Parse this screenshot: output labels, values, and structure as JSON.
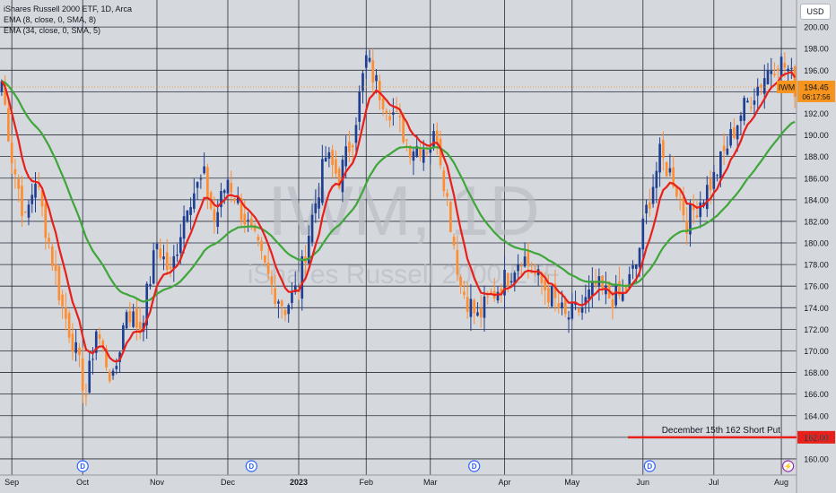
{
  "legend": {
    "title": "iShares Russell 2000 ETF, 1D, Arca",
    "ema_fast": "EMA (8, close, 0, SMA, 8)",
    "ema_slow": "EMA (34, close, 0, SMA, 5)"
  },
  "currency_button": "USD",
  "watermark": {
    "symbol": "IWM, 1D",
    "name": "iShares Russell 2000 ETF"
  },
  "colors": {
    "background": "#d5d8dd",
    "grid": "#2a2e39",
    "up_candle": "#1e3f91",
    "down_candle": "#ff8c2e",
    "ema_fast": "#e8201a",
    "ema_slow": "#3fa63a",
    "price_tag": "#f7941d",
    "short_put_line": "#e8201a"
  },
  "chart_data": {
    "type": "candlestick",
    "symbol": "IWM",
    "timeframe": "1D",
    "ylim": [
      158.5,
      202.5
    ],
    "y_ticks": [
      "160.00",
      "162.00",
      "164.00",
      "166.00",
      "168.00",
      "170.00",
      "172.00",
      "174.00",
      "176.00",
      "178.00",
      "180.00",
      "182.00",
      "184.00",
      "186.00",
      "188.00",
      "190.00",
      "192.00",
      "194.00",
      "196.00",
      "198.00",
      "200.00"
    ],
    "x_labels": [
      {
        "label": "Sep",
        "bar": 3
      },
      {
        "label": "Oct",
        "bar": 24
      },
      {
        "label": "Nov",
        "bar": 46
      },
      {
        "label": "Dec",
        "bar": 67
      },
      {
        "label": "2023",
        "bar": 88
      },
      {
        "label": "Feb",
        "bar": 108
      },
      {
        "label": "Mar",
        "bar": 127
      },
      {
        "label": "Apr",
        "bar": 149
      },
      {
        "label": "May",
        "bar": 169
      },
      {
        "label": "Jun",
        "bar": 190
      },
      {
        "label": "Jul",
        "bar": 211
      },
      {
        "label": "Aug",
        "bar": 231
      }
    ],
    "bar_count": 236,
    "anchors": [
      [
        0,
        195
      ],
      [
        3,
        188
      ],
      [
        7,
        182
      ],
      [
        10,
        186
      ],
      [
        14,
        180
      ],
      [
        18,
        174
      ],
      [
        21,
        171
      ],
      [
        25,
        166
      ],
      [
        28,
        172
      ],
      [
        33,
        167
      ],
      [
        37,
        174
      ],
      [
        41,
        172
      ],
      [
        46,
        180
      ],
      [
        50,
        177
      ],
      [
        55,
        184
      ],
      [
        60,
        186
      ],
      [
        63,
        182
      ],
      [
        67,
        186
      ],
      [
        71,
        183
      ],
      [
        75,
        180
      ],
      [
        80,
        176
      ],
      [
        84,
        174
      ],
      [
        88,
        176
      ],
      [
        91,
        181
      ],
      [
        96,
        188
      ],
      [
        100,
        186
      ],
      [
        104,
        190
      ],
      [
        108,
        197
      ],
      [
        112,
        194
      ],
      [
        116,
        192
      ],
      [
        121,
        189
      ],
      [
        126,
        189
      ],
      [
        129,
        190
      ],
      [
        133,
        182
      ],
      [
        136,
        176
      ],
      [
        141,
        173
      ],
      [
        145,
        175
      ],
      [
        150,
        177
      ],
      [
        154,
        179
      ],
      [
        158,
        177
      ],
      [
        163,
        175
      ],
      [
        167,
        173
      ],
      [
        172,
        174
      ],
      [
        176,
        176
      ],
      [
        180,
        175
      ],
      [
        184,
        175
      ],
      [
        188,
        178
      ],
      [
        191,
        183
      ],
      [
        195,
        188
      ],
      [
        199,
        186
      ],
      [
        203,
        182
      ],
      [
        207,
        184
      ],
      [
        211,
        186
      ],
      [
        215,
        189
      ],
      [
        219,
        192
      ],
      [
        223,
        194
      ],
      [
        227,
        196
      ],
      [
        230,
        197
      ],
      [
        233,
        196
      ],
      [
        235,
        194.5
      ]
    ],
    "ema_fast_period": 8,
    "ema_slow_period": 34,
    "last_price": {
      "symbol": "IWM",
      "value": "194.45",
      "countdown": "06:17:56"
    },
    "horizontal_lines": [
      {
        "label": "December 15th 162 Short Put",
        "value": 162,
        "price_label": "162.00"
      }
    ],
    "dividend_markers": [
      {
        "bar": 24,
        "label": "D"
      },
      {
        "bar": 74,
        "label": "D"
      },
      {
        "bar": 140,
        "label": "D"
      },
      {
        "bar": 192,
        "label": "D"
      }
    ],
    "split_marker": {
      "bar": 233,
      "label": "⚡"
    }
  }
}
